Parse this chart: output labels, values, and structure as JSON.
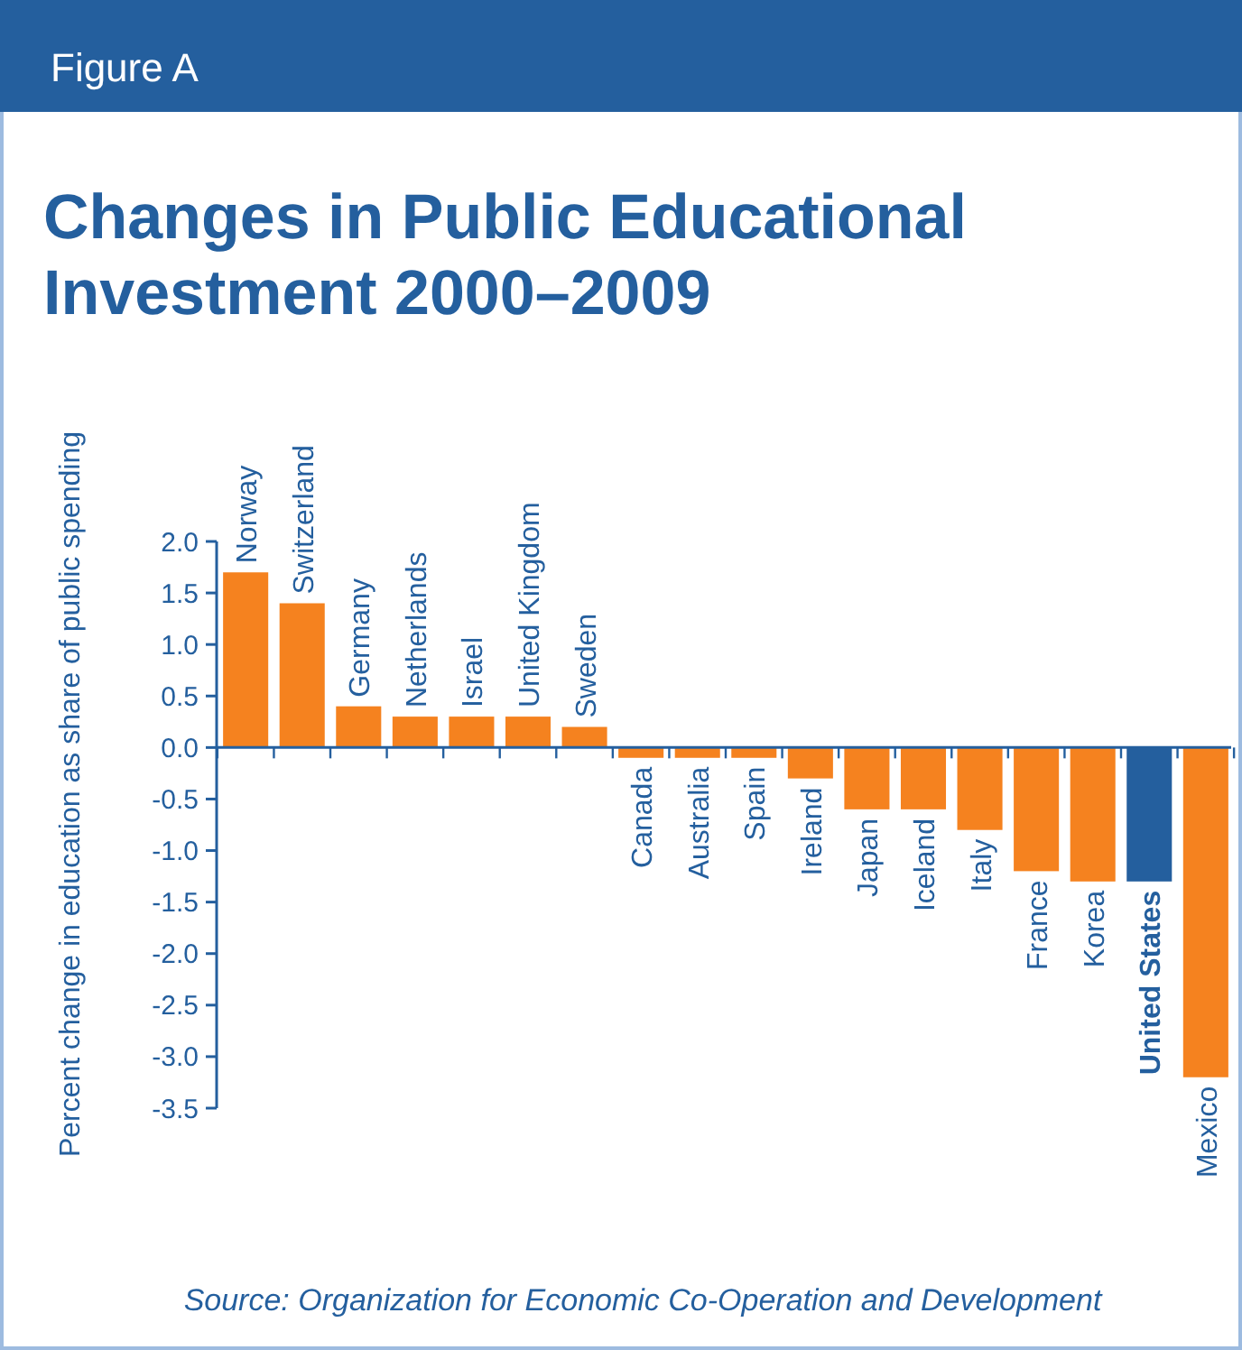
{
  "chart_data": {
    "type": "bar",
    "subtitle": "Figure A",
    "title": "Changes in Public Educational Investment 2000–2009",
    "ylabel": "Percent change in education as share of public spending",
    "categories": [
      "Norway",
      "Switzerland",
      "Germany",
      "Netherlands",
      "Israel",
      "United Kingdom",
      "Sweden",
      "Canada",
      "Australia",
      "Spain",
      "Ireland",
      "Japan",
      "Iceland",
      "Italy",
      "France",
      "Korea",
      "United States",
      "Mexico"
    ],
    "values": [
      1.7,
      1.4,
      0.4,
      0.3,
      0.3,
      0.3,
      0.2,
      -0.1,
      -0.1,
      -0.1,
      -0.3,
      -0.6,
      -0.6,
      -0.8,
      -1.2,
      -1.3,
      -1.3,
      -3.2
    ],
    "colors": [
      "#f5821f",
      "#f5821f",
      "#f5821f",
      "#f5821f",
      "#f5821f",
      "#f5821f",
      "#f5821f",
      "#f5821f",
      "#f5821f",
      "#f5821f",
      "#f5821f",
      "#f5821f",
      "#f5821f",
      "#f5821f",
      "#f5821f",
      "#f5821f",
      "#245f9e",
      "#f5821f"
    ],
    "ylim": [
      -3.5,
      2.0
    ],
    "yticks": [
      {
        "value": 2,
        "label": "2.0"
      },
      {
        "value": 1.5,
        "label": "1.5"
      },
      {
        "value": 1,
        "label": "1.0"
      },
      {
        "value": 0.5,
        "label": "0.5"
      },
      {
        "value": 0,
        "label": "0.0"
      },
      {
        "value": -0.5,
        "label": "-0.5"
      },
      {
        "value": -1,
        "label": "-1.0"
      },
      {
        "value": -1.5,
        "label": "-1.5"
      },
      {
        "value": -2,
        "label": "-2.0"
      },
      {
        "value": -2.5,
        "label": "-2.5"
      },
      {
        "value": -3,
        "label": "-3.0"
      },
      {
        "value": -3.5,
        "label": "-3.5"
      }
    ],
    "annotations": [
      "Source: Organization for Economic Co-Operation and Development"
    ]
  }
}
